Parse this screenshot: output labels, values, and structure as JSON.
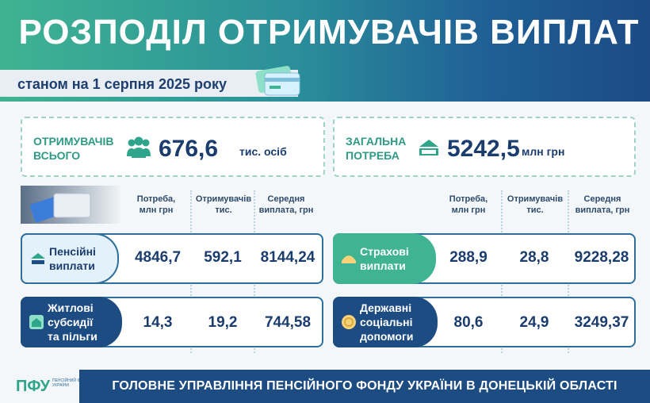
{
  "header": {
    "title": "РОЗПОДІЛ ОТРИМУВАЧІВ ВИПЛАТ",
    "subtitle": "станом на 1 серпня 2025 року"
  },
  "summary": {
    "recipients": {
      "label_line1": "ОТРИМУВАЧІВ",
      "label_line2": "ВСЬОГО",
      "value": "676,6",
      "unit": "тис. осіб",
      "icon": "people-icon"
    },
    "need": {
      "label_line1": "ЗАГАЛЬНА",
      "label_line2": "ПОТРЕБА",
      "value": "5242,5",
      "unit": "млн грн",
      "icon": "money-icon"
    }
  },
  "columns": {
    "need": [
      "Потреба,",
      "млн грн"
    ],
    "recipients": [
      "Отримувачів",
      "тис."
    ],
    "average": [
      "Середня",
      "виплата, грн"
    ]
  },
  "rows": {
    "pension": {
      "line1": "Пенсійні",
      "line2": "виплати",
      "need": "4846,7",
      "recipients": "592,1",
      "average": "8144,24"
    },
    "housing": {
      "line1": "Житлові",
      "line2": "субсидії",
      "line3": "та пільги",
      "need": "14,3",
      "recipients": "19,2",
      "average": "744,58"
    },
    "insurance": {
      "line1": "Страхові",
      "line2": "виплати",
      "need": "288,9",
      "recipients": "28,8",
      "average": "9228,28"
    },
    "social": {
      "line1": "Державні",
      "line2": "соціальні",
      "line3": "допомоги",
      "need": "80,6",
      "recipients": "24,9",
      "average": "3249,37"
    }
  },
  "footer": {
    "logo": "ПФУ",
    "logo_caption": "ПЕНСІЙНИЙ ФОНД УКРАЇНИ",
    "text": "ГОЛОВНЕ УПРАВЛІННЯ ПЕНСІЙНОГО ФОНДУ УКРАЇНИ В ДОНЕЦЬКІЙ ОБЛАСТІ"
  },
  "colors": {
    "green": "#2fa58b",
    "navy": "#1d4c82",
    "light": "#e3f1fb"
  }
}
